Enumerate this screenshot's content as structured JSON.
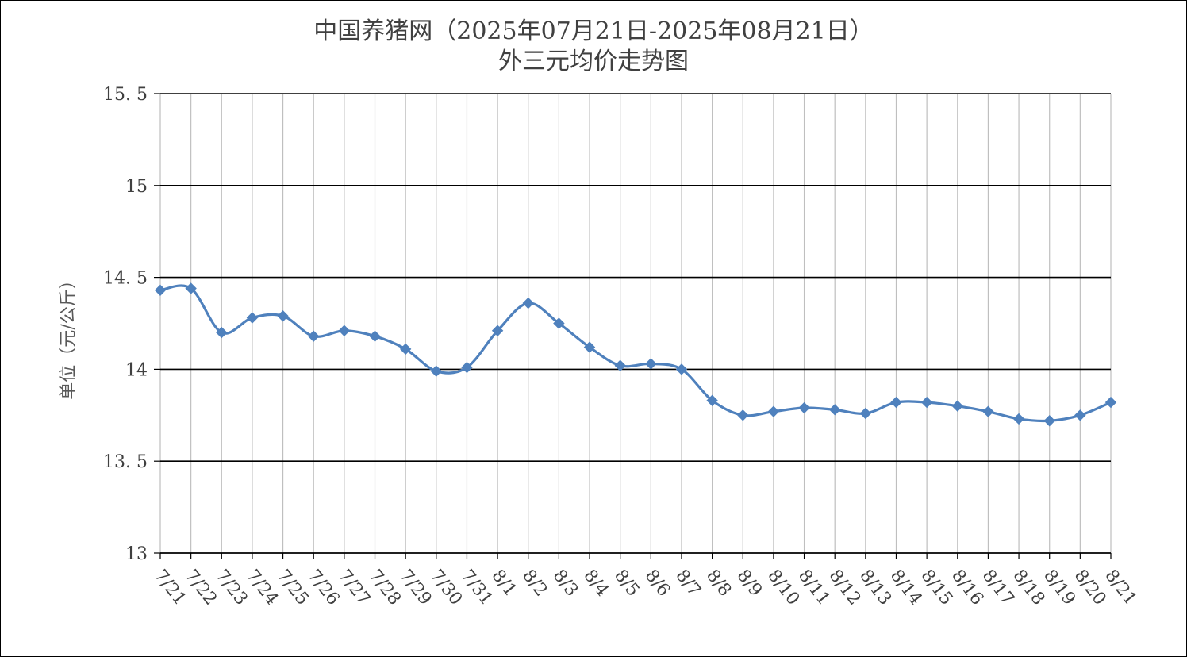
{
  "chart_data": {
    "type": "line",
    "title": "中国养猪网（2025年07月21日-2025年08月21日）",
    "subtitle": "外三元均价走势图",
    "ylabel": "单位（元/公斤）",
    "xlabel": "",
    "ylim": [
      13,
      15.5
    ],
    "yticks": [
      "13",
      "13.5",
      "14",
      "14.5",
      "15",
      "15.5"
    ],
    "grid": true,
    "legend": "none",
    "categories": [
      "7/21",
      "7/22",
      "7/23",
      "7/24",
      "7/25",
      "7/26",
      "7/27",
      "7/28",
      "7/29",
      "7/30",
      "7/31",
      "8/1",
      "8/2",
      "8/3",
      "8/4",
      "8/5",
      "8/6",
      "8/7",
      "8/8",
      "8/9",
      "8/10",
      "8/11",
      "8/12",
      "8/13",
      "8/14",
      "8/15",
      "8/16",
      "8/17",
      "8/18",
      "8/19",
      "8/20",
      "8/21"
    ],
    "series": [
      {
        "color": "#4F81BD",
        "values": [
          14.43,
          14.44,
          14.2,
          14.28,
          14.29,
          14.18,
          14.21,
          14.18,
          14.11,
          13.99,
          14.01,
          14.21,
          14.36,
          14.25,
          14.12,
          14.02,
          14.03,
          14.0,
          13.83,
          13.75,
          13.77,
          13.79,
          13.78,
          13.76,
          13.82,
          13.82,
          13.8,
          13.77,
          13.73,
          13.72,
          13.75,
          13.82
        ]
      }
    ]
  }
}
